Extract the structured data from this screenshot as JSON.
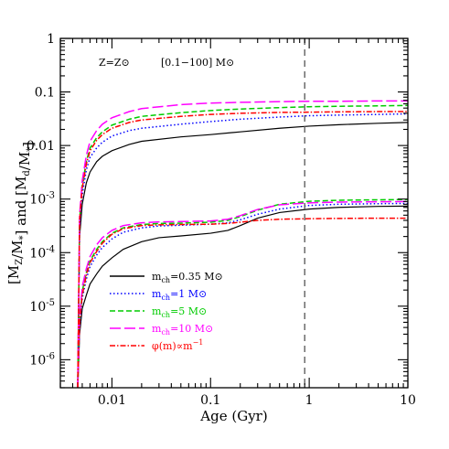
{
  "chart_data": {
    "type": "line",
    "xlabel": "Age (Gyr)",
    "ylabel": "[M_Z/M_*] and [M_d/M_*]",
    "xscale": "log",
    "yscale": "log",
    "xlim": [
      0.003,
      10
    ],
    "ylim": [
      3e-07,
      1
    ],
    "x_ticks": [
      {
        "value": 0.01,
        "label": "0.01"
      },
      {
        "value": 0.1,
        "label": "0.1"
      },
      {
        "value": 1,
        "label": "1"
      },
      {
        "value": 10,
        "label": "10"
      }
    ],
    "y_ticks": [
      {
        "value": 1,
        "label": "1"
      },
      {
        "value": 0.1,
        "label": "0.1"
      },
      {
        "value": 0.01,
        "label": "0.01"
      }
    ],
    "y_ticks_exp": [
      {
        "value": 0.001,
        "base": "10",
        "exp": "-3"
      },
      {
        "value": 0.0001,
        "base": "10",
        "exp": "-4"
      },
      {
        "value": 1e-05,
        "base": "10",
        "exp": "-5"
      },
      {
        "value": 1e-06,
        "base": "10",
        "exp": "-6"
      }
    ],
    "annotation_metallicity": "Z=Z⊙",
    "annotation_imf": "[0.1−100] M⊙",
    "vline_x": 0.9,
    "legend_position": "bottom-left",
    "series": [
      {
        "name": "m_ch=0.35 M⊙",
        "group": "metals",
        "color": "#000000",
        "dash": "",
        "points": [
          [
            0.0045,
            3e-07
          ],
          [
            0.0047,
            3e-06
          ],
          [
            0.005,
            9e-06
          ],
          [
            0.0055,
            1.6e-05
          ],
          [
            0.006,
            2.6e-05
          ],
          [
            0.007,
            4e-05
          ],
          [
            0.008,
            5.6e-05
          ],
          [
            0.01,
            8e-05
          ],
          [
            0.013,
            0.000115
          ],
          [
            0.02,
            0.00016
          ],
          [
            0.03,
            0.00019
          ],
          [
            0.05,
            0.000205
          ],
          [
            0.1,
            0.00023
          ],
          [
            0.15,
            0.00026
          ],
          [
            0.2,
            0.00032
          ],
          [
            0.3,
            0.00044
          ],
          [
            0.5,
            0.00056
          ],
          [
            1,
            0.00065
          ],
          [
            2,
            0.0007
          ],
          [
            5,
            0.00073
          ],
          [
            10,
            0.00074
          ]
        ]
      },
      {
        "name": "m_ch=1 M⊙",
        "group": "metals",
        "color": "#0000ff",
        "dash": "1.5,2.5",
        "points": [
          [
            0.0045,
            3e-07
          ],
          [
            0.0047,
            4e-06
          ],
          [
            0.005,
            1.4e-05
          ],
          [
            0.0055,
            3.2e-05
          ],
          [
            0.006,
            5.5e-05
          ],
          [
            0.007,
            9e-05
          ],
          [
            0.008,
            0.000125
          ],
          [
            0.01,
            0.00018
          ],
          [
            0.013,
            0.00024
          ],
          [
            0.02,
            0.00029
          ],
          [
            0.03,
            0.000315
          ],
          [
            0.05,
            0.000325
          ],
          [
            0.1,
            0.00034
          ],
          [
            0.15,
            0.00036
          ],
          [
            0.2,
            0.00041
          ],
          [
            0.3,
            0.00052
          ],
          [
            0.5,
            0.00065
          ],
          [
            1,
            0.00076
          ],
          [
            2,
            0.0008
          ],
          [
            5,
            0.00082
          ],
          [
            10,
            0.00083
          ]
        ]
      },
      {
        "name": "m_ch=5 M⊙",
        "group": "metals",
        "color": "#00cc00",
        "dash": "6,3",
        "points": [
          [
            0.0045,
            3e-07
          ],
          [
            0.0047,
            5e-06
          ],
          [
            0.005,
            1.9e-05
          ],
          [
            0.0055,
            4.2e-05
          ],
          [
            0.006,
            7e-05
          ],
          [
            0.007,
            0.000115
          ],
          [
            0.008,
            0.00016
          ],
          [
            0.01,
            0.00023
          ],
          [
            0.013,
            0.00029
          ],
          [
            0.02,
            0.000335
          ],
          [
            0.03,
            0.00035
          ],
          [
            0.05,
            0.000355
          ],
          [
            0.1,
            0.00037
          ],
          [
            0.15,
            0.0004
          ],
          [
            0.2,
            0.00047
          ],
          [
            0.3,
            0.00062
          ],
          [
            0.5,
            0.0008
          ],
          [
            1,
            0.00091
          ],
          [
            2,
            0.00095
          ],
          [
            5,
            0.00097
          ],
          [
            10,
            0.00098
          ]
        ]
      },
      {
        "name": "m_ch=10 M⊙",
        "group": "metals",
        "color": "#ff00ff",
        "dash": "12,4",
        "points": [
          [
            0.0045,
            3e-07
          ],
          [
            0.0047,
            6e-06
          ],
          [
            0.005,
            2.3e-05
          ],
          [
            0.0055,
            5e-05
          ],
          [
            0.006,
            8.5e-05
          ],
          [
            0.007,
            0.00014
          ],
          [
            0.008,
            0.00019
          ],
          [
            0.01,
            0.00026
          ],
          [
            0.013,
            0.00032
          ],
          [
            0.02,
            0.00036
          ],
          [
            0.03,
            0.000375
          ],
          [
            0.05,
            0.00038
          ],
          [
            0.1,
            0.00039
          ],
          [
            0.15,
            0.00042
          ],
          [
            0.2,
            0.00049
          ],
          [
            0.3,
            0.00064
          ],
          [
            0.5,
            0.00078
          ],
          [
            1,
            0.00085
          ],
          [
            2,
            0.00088
          ],
          [
            5,
            0.00089
          ],
          [
            10,
            0.0009
          ]
        ]
      },
      {
        "name": "φ(m)∝m⁻¹",
        "group": "metals",
        "color": "#ff0000",
        "dash": "6,2,1.5,2",
        "points": [
          [
            0.0045,
            3e-07
          ],
          [
            0.0047,
            5e-06
          ],
          [
            0.005,
            1.6e-05
          ],
          [
            0.0055,
            3.8e-05
          ],
          [
            0.006,
            6.5e-05
          ],
          [
            0.007,
            0.000105
          ],
          [
            0.008,
            0.00015
          ],
          [
            0.01,
            0.00022
          ],
          [
            0.013,
            0.00028
          ],
          [
            0.02,
            0.00032
          ],
          [
            0.03,
            0.00033
          ],
          [
            0.05,
            0.000335
          ],
          [
            0.1,
            0.00034
          ],
          [
            0.15,
            0.00035
          ],
          [
            0.2,
            0.00037
          ],
          [
            0.3,
            0.0004
          ],
          [
            0.5,
            0.00042
          ],
          [
            1,
            0.00043
          ],
          [
            2,
            0.000435
          ],
          [
            5,
            0.00044
          ],
          [
            10,
            0.00044
          ]
        ]
      },
      {
        "name": "m_ch=0.35 M⊙",
        "group": "dust",
        "color": "#000000",
        "dash": "",
        "points": [
          [
            0.0045,
            3e-07
          ],
          [
            0.0047,
            0.0002
          ],
          [
            0.005,
            0.0008
          ],
          [
            0.0055,
            0.002
          ],
          [
            0.006,
            0.0032
          ],
          [
            0.007,
            0.005
          ],
          [
            0.008,
            0.0063
          ],
          [
            0.01,
            0.008
          ],
          [
            0.015,
            0.0105
          ],
          [
            0.02,
            0.012
          ],
          [
            0.05,
            0.0145
          ],
          [
            0.1,
            0.016
          ],
          [
            0.2,
            0.018
          ],
          [
            0.5,
            0.021
          ],
          [
            1,
            0.023
          ],
          [
            2,
            0.0245
          ],
          [
            5,
            0.026
          ],
          [
            10,
            0.027
          ]
        ]
      },
      {
        "name": "m_ch=1 M⊙",
        "group": "dust",
        "color": "#0000ff",
        "dash": "1.5,2.5",
        "points": [
          [
            0.0045,
            3e-07
          ],
          [
            0.0047,
            0.0003
          ],
          [
            0.005,
            0.0012
          ],
          [
            0.0055,
            0.0035
          ],
          [
            0.006,
            0.006
          ],
          [
            0.007,
            0.009
          ],
          [
            0.008,
            0.0115
          ],
          [
            0.01,
            0.015
          ],
          [
            0.015,
            0.019
          ],
          [
            0.02,
            0.021
          ],
          [
            0.05,
            0.025
          ],
          [
            0.1,
            0.028
          ],
          [
            0.2,
            0.031
          ],
          [
            0.5,
            0.034
          ],
          [
            1,
            0.036
          ],
          [
            2,
            0.037
          ],
          [
            5,
            0.038
          ],
          [
            10,
            0.039
          ]
        ]
      },
      {
        "name": "m_ch=5 M⊙",
        "group": "dust",
        "color": "#00cc00",
        "dash": "6,3",
        "points": [
          [
            0.0045,
            3e-07
          ],
          [
            0.0047,
            0.0004
          ],
          [
            0.005,
            0.0018
          ],
          [
            0.0055,
            0.005
          ],
          [
            0.006,
            0.009
          ],
          [
            0.007,
            0.014
          ],
          [
            0.008,
            0.018
          ],
          [
            0.01,
            0.024
          ],
          [
            0.015,
            0.031
          ],
          [
            0.02,
            0.035
          ],
          [
            0.05,
            0.041
          ],
          [
            0.1,
            0.045
          ],
          [
            0.2,
            0.048
          ],
          [
            0.5,
            0.051
          ],
          [
            1,
            0.053
          ],
          [
            2,
            0.054
          ],
          [
            5,
            0.055
          ],
          [
            10,
            0.056
          ]
        ]
      },
      {
        "name": "m_ch=10 M⊙",
        "group": "dust",
        "color": "#ff00ff",
        "dash": "12,4",
        "points": [
          [
            0.0045,
            3e-07
          ],
          [
            0.0047,
            0.0005
          ],
          [
            0.005,
            0.0022
          ],
          [
            0.0055,
            0.0065
          ],
          [
            0.006,
            0.012
          ],
          [
            0.007,
            0.019
          ],
          [
            0.008,
            0.025
          ],
          [
            0.01,
            0.033
          ],
          [
            0.015,
            0.043
          ],
          [
            0.02,
            0.049
          ],
          [
            0.05,
            0.058
          ],
          [
            0.1,
            0.062
          ],
          [
            0.2,
            0.064
          ],
          [
            0.5,
            0.066
          ],
          [
            1,
            0.067
          ],
          [
            2,
            0.067
          ],
          [
            5,
            0.068
          ],
          [
            10,
            0.068
          ]
        ]
      },
      {
        "name": "φ(m)∝m⁻¹",
        "group": "dust",
        "color": "#ff0000",
        "dash": "6,2,1.5,2",
        "points": [
          [
            0.0045,
            3e-07
          ],
          [
            0.0047,
            0.0004
          ],
          [
            0.005,
            0.0016
          ],
          [
            0.0055,
            0.0045
          ],
          [
            0.006,
            0.008
          ],
          [
            0.007,
            0.0125
          ],
          [
            0.008,
            0.016
          ],
          [
            0.01,
            0.021
          ],
          [
            0.015,
            0.027
          ],
          [
            0.02,
            0.03
          ],
          [
            0.05,
            0.035
          ],
          [
            0.1,
            0.038
          ],
          [
            0.2,
            0.04
          ],
          [
            0.5,
            0.0415
          ],
          [
            1,
            0.042
          ],
          [
            2,
            0.0425
          ],
          [
            5,
            0.043
          ],
          [
            10,
            0.043
          ]
        ]
      }
    ],
    "legend": [
      {
        "label": "m",
        "sub": "ch",
        "rest": "=0.35 M⊙",
        "color": "#000000",
        "text_color": "#000000",
        "dash": ""
      },
      {
        "label": "m",
        "sub": "ch",
        "rest": "=1 M⊙",
        "color": "#0000ff",
        "text_color": "#0000ff",
        "dash": "1.5,2.5"
      },
      {
        "label": "m",
        "sub": "ch",
        "rest": "=5 M⊙",
        "color": "#00cc00",
        "text_color": "#00cc00",
        "dash": "6,3"
      },
      {
        "label": "m",
        "sub": "ch",
        "rest": "=10 M⊙",
        "color": "#ff00ff",
        "text_color": "#ff00ff",
        "dash": "12,4"
      },
      {
        "label": "φ(m)∝m",
        "sub": "",
        "sup": "−1",
        "rest": "",
        "color": "#ff0000",
        "text_color": "#ff0000",
        "dash": "6,2,1.5,2"
      }
    ]
  }
}
